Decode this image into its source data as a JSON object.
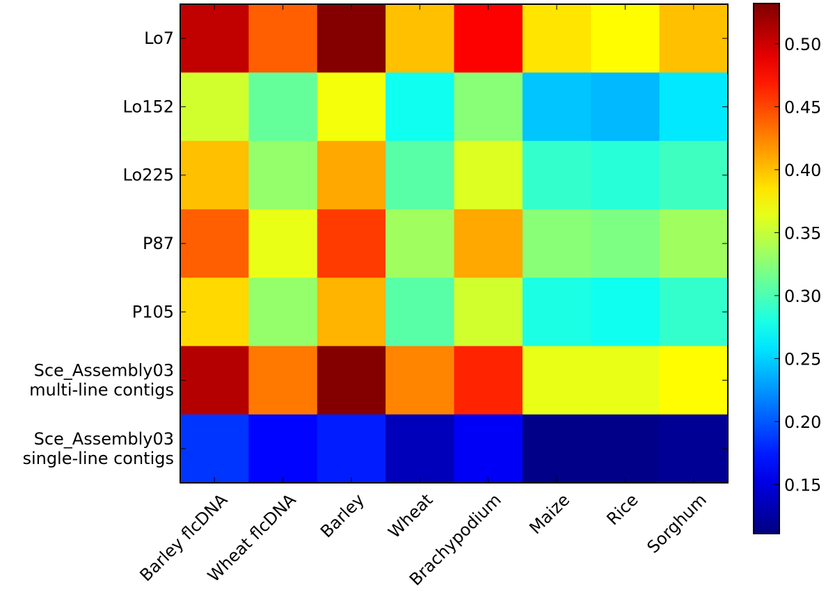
{
  "chart_data": {
    "type": "heatmap",
    "title": "",
    "xlabel": "",
    "ylabel": "",
    "colormap": "jet",
    "color_range": [
      0.111,
      0.532
    ],
    "rows": [
      [
        "Lo7"
      ],
      [
        "Lo152"
      ],
      [
        "Lo225"
      ],
      [
        "P87"
      ],
      [
        "P105"
      ],
      [
        "Sce_Assembly03",
        "multi-line contigs"
      ],
      [
        "Sce_Assembly03",
        "single-line contigs"
      ]
    ],
    "columns": [
      "Barley flcDNA",
      "Wheat flcDNA",
      "Barley",
      "Wheat",
      "Brachypodium",
      "Maize",
      "Rice",
      "Sorghum"
    ],
    "values": [
      [
        0.505,
        0.44,
        0.53,
        0.4,
        0.48,
        0.385,
        0.375,
        0.4
      ],
      [
        0.355,
        0.31,
        0.37,
        0.275,
        0.325,
        0.245,
        0.24,
        0.26
      ],
      [
        0.4,
        0.33,
        0.41,
        0.305,
        0.36,
        0.29,
        0.285,
        0.295
      ],
      [
        0.44,
        0.365,
        0.455,
        0.335,
        0.41,
        0.325,
        0.32,
        0.335
      ],
      [
        0.39,
        0.33,
        0.405,
        0.305,
        0.355,
        0.28,
        0.275,
        0.29
      ],
      [
        0.51,
        0.43,
        0.53,
        0.425,
        0.465,
        0.365,
        0.365,
        0.375
      ],
      [
        0.185,
        0.165,
        0.175,
        0.135,
        0.16,
        0.115,
        0.115,
        0.12
      ]
    ],
    "colorbar": {
      "ticks": [
        0.15,
        0.2,
        0.25,
        0.3,
        0.35,
        0.4,
        0.45,
        0.5
      ],
      "tick_labels": [
        "0.15",
        "0.20",
        "0.25",
        "0.30",
        "0.35",
        "0.40",
        "0.45",
        "0.50"
      ],
      "placement": "right"
    },
    "grid": false
  }
}
